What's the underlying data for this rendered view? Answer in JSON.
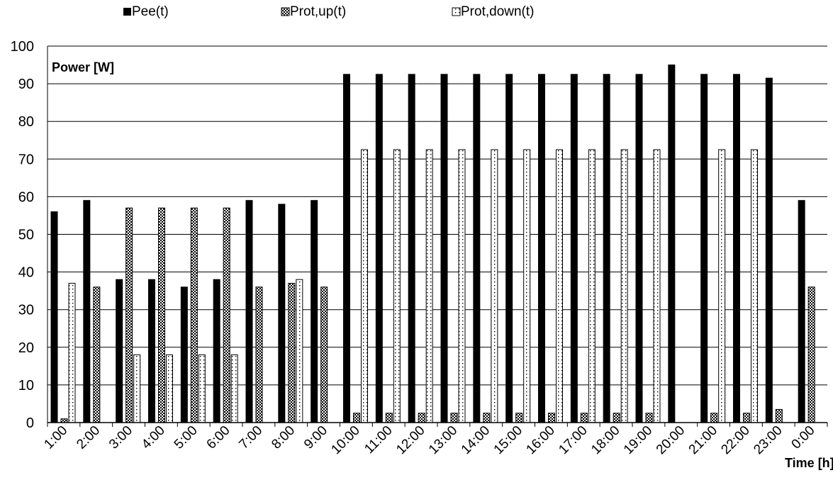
{
  "chart_data": {
    "type": "bar",
    "title": "",
    "ylabel": "Power [W]",
    "xlabel": "Time [h]",
    "ylim": [
      0,
      100
    ],
    "y_ticks": [
      0,
      10,
      20,
      30,
      40,
      50,
      60,
      70,
      80,
      90,
      100
    ],
    "grid": "horizontal",
    "legend_position": "top",
    "categories": [
      "1:00",
      "2:00",
      "3:00",
      "4:00",
      "5:00",
      "6:00",
      "7:00",
      "8:00",
      "9:00",
      "10:00",
      "11:00",
      "12:00",
      "13:00",
      "14:00",
      "15:00",
      "16:00",
      "17:00",
      "18:00",
      "19:00",
      "20:00",
      "21:00",
      "22:00",
      "23:00",
      "0:00"
    ],
    "series": [
      {
        "name": "Pee(t)",
        "pattern": "solid",
        "color": "#000000",
        "values": [
          56,
          59,
          38,
          38,
          36,
          38,
          59,
          58,
          59,
          92.5,
          92.5,
          92.5,
          92.5,
          92.5,
          92.5,
          92.5,
          92.5,
          92.5,
          92.5,
          95,
          92.5,
          92.5,
          91.5,
          59
        ]
      },
      {
        "name": "Prot,up(t)",
        "pattern": "crosshatch",
        "color": "#000000",
        "values": [
          1,
          36,
          57,
          57,
          57,
          57,
          36,
          37,
          36,
          2.5,
          2.5,
          2.5,
          2.5,
          2.5,
          2.5,
          2.5,
          2.5,
          2.5,
          2.5,
          0,
          2.5,
          2.5,
          3.5,
          36
        ]
      },
      {
        "name": "Prot,down(t)",
        "pattern": "dotted",
        "color": "#000000",
        "values": [
          37,
          0,
          18,
          18,
          18,
          18,
          0,
          38,
          0,
          72.5,
          72.5,
          72.5,
          72.5,
          72.5,
          72.5,
          72.5,
          72.5,
          72.5,
          72.5,
          0,
          72.5,
          72.5,
          0,
          0
        ]
      }
    ]
  }
}
